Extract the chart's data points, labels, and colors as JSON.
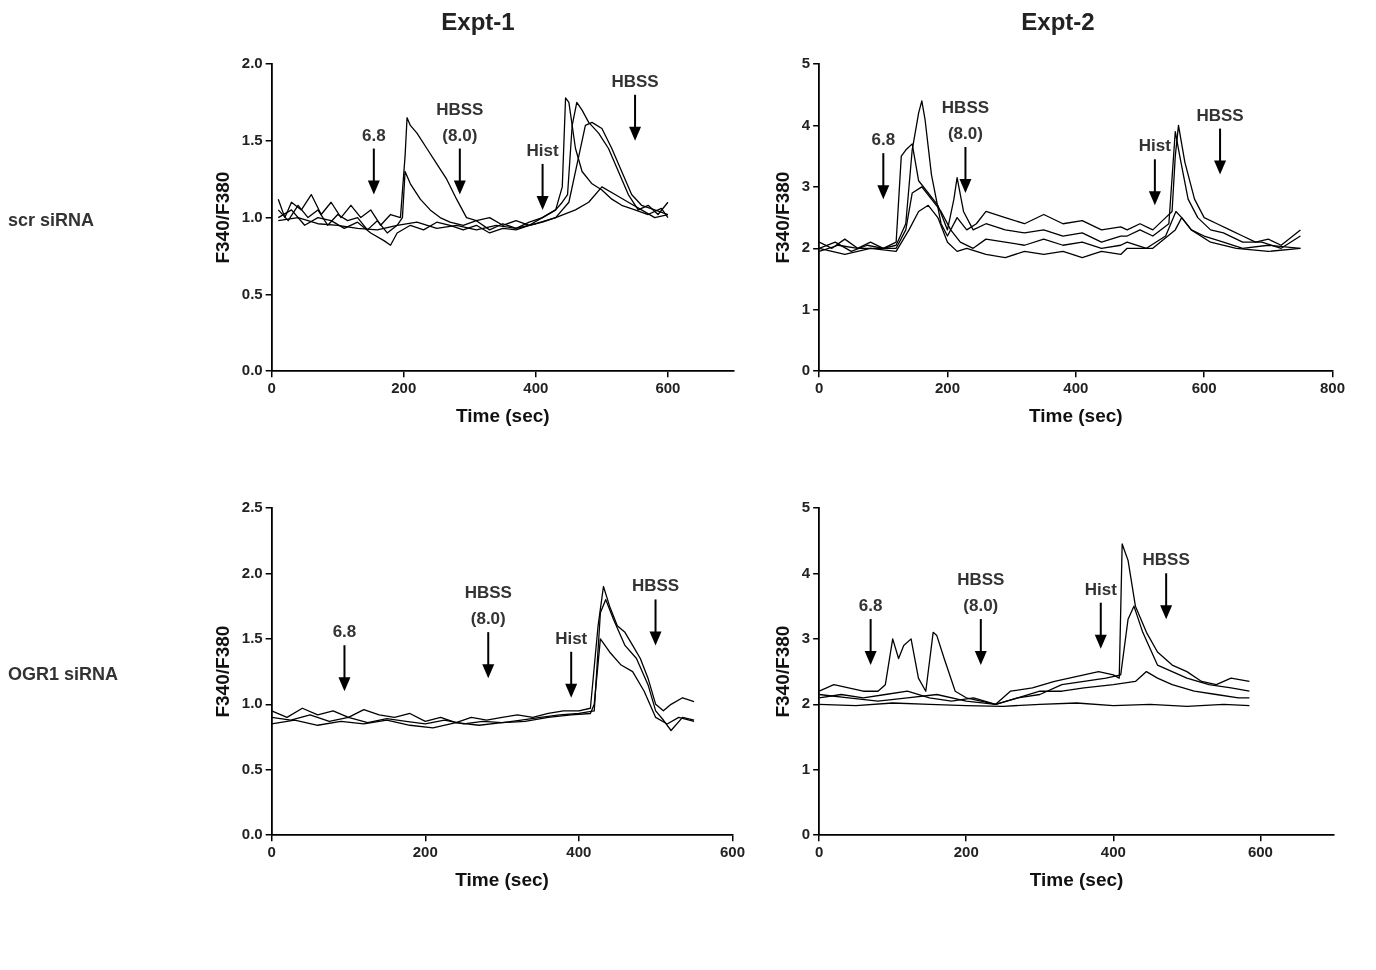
{
  "chart_data": [
    {
      "type": "line",
      "title": "Expt-1",
      "xlabel": "Time (sec)",
      "ylabel": "F340/F380",
      "xlim": [
        0,
        700
      ],
      "xticks": [
        0,
        200,
        400,
        600
      ],
      "ylim": [
        0,
        2
      ],
      "yticks": [
        {
          "value": 0,
          "label": "0.0"
        },
        {
          "value": 0.5,
          "label": "0.5"
        },
        {
          "value": 1,
          "label": "1.0"
        },
        {
          "value": 1.5,
          "label": "1.5"
        },
        {
          "value": 2,
          "label": "2.0"
        }
      ],
      "grid": false,
      "legend": false,
      "marker": "none",
      "line_style": "solid",
      "series": [
        {
          "color": "#000000",
          "x": [
            10,
            20,
            30,
            45,
            60,
            75,
            90,
            105,
            120,
            135,
            150,
            165,
            180,
            195,
            202,
            205,
            210,
            220,
            235,
            250,
            265,
            280,
            295,
            310,
            330,
            350,
            370,
            390,
            410,
            430,
            440,
            448,
            455,
            462,
            470,
            480,
            495,
            510,
            525,
            540,
            555,
            570,
            585,
            600
          ],
          "values": [
            1.12,
            1.0,
            1.1,
            1.05,
            1.15,
            1.02,
            1.1,
            1.0,
            1.08,
            1.0,
            1.05,
            0.95,
            1.02,
            1.0,
            1.4,
            1.65,
            1.6,
            1.55,
            1.45,
            1.35,
            1.25,
            1.12,
            1.0,
            0.98,
            1.0,
            0.95,
            0.98,
            0.95,
            1.0,
            1.05,
            1.1,
            1.15,
            1.6,
            1.75,
            1.7,
            1.62,
            1.55,
            1.45,
            1.3,
            1.15,
            1.05,
            1.08,
            1.02,
            1.1
          ]
        },
        {
          "color": "#000000",
          "x": [
            10,
            25,
            40,
            55,
            70,
            85,
            100,
            115,
            130,
            145,
            160,
            175,
            190,
            198,
            202,
            210,
            225,
            240,
            255,
            270,
            290,
            310,
            330,
            350,
            370,
            390,
            410,
            430,
            440,
            445,
            450,
            460,
            470,
            485,
            500,
            515,
            530,
            550,
            570,
            590,
            600
          ],
          "values": [
            1.05,
            0.98,
            1.08,
            1.0,
            1.05,
            0.95,
            1.02,
            0.98,
            1.0,
            0.92,
            0.98,
            0.9,
            0.95,
            1.0,
            1.3,
            1.22,
            1.12,
            1.05,
            1.0,
            0.97,
            0.95,
            0.98,
            0.92,
            0.96,
            0.93,
            0.97,
            1.0,
            1.05,
            1.2,
            1.78,
            1.75,
            1.45,
            1.3,
            1.22,
            1.18,
            1.12,
            1.08,
            1.05,
            1.02,
            1.06,
            1.0
          ]
        },
        {
          "color": "#000000",
          "x": [
            10,
            30,
            50,
            70,
            90,
            110,
            130,
            150,
            170,
            180,
            190,
            210,
            230,
            250,
            270,
            290,
            310,
            330,
            350,
            370,
            390,
            410,
            430,
            450,
            465,
            475,
            485,
            500,
            515,
            530,
            545,
            560,
            580,
            600
          ],
          "values": [
            1.0,
            1.05,
            0.95,
            1.0,
            0.98,
            0.93,
            0.97,
            0.9,
            0.85,
            0.82,
            0.9,
            0.95,
            0.92,
            0.97,
            0.95,
            0.92,
            0.95,
            0.9,
            0.93,
            0.92,
            0.95,
            0.97,
            1.0,
            1.1,
            1.4,
            1.6,
            1.62,
            1.58,
            1.45,
            1.3,
            1.15,
            1.08,
            1.05,
            1.02
          ]
        },
        {
          "color": "#000000",
          "x": [
            10,
            40,
            70,
            100,
            130,
            160,
            190,
            220,
            250,
            280,
            310,
            340,
            370,
            400,
            430,
            460,
            480,
            500,
            520,
            540,
            560,
            580,
            600
          ],
          "values": [
            0.98,
            1.0,
            0.96,
            0.95,
            0.93,
            0.92,
            0.95,
            0.97,
            0.93,
            0.95,
            0.92,
            0.95,
            0.93,
            0.96,
            1.0,
            1.05,
            1.1,
            1.2,
            1.15,
            1.1,
            1.05,
            1.0,
            1.02
          ]
        }
      ],
      "annotations": [
        "scr siRNA",
        "6.8",
        "HBSS\n(8.0)",
        "Hist",
        "HBSS"
      ]
    },
    {
      "type": "line",
      "title": "Expt-2",
      "xlabel": "Time (sec)",
      "ylabel": "F340/F380",
      "xlim": [
        0,
        800
      ],
      "xticks": [
        0,
        200,
        400,
        600,
        800
      ],
      "ylim": [
        0,
        5
      ],
      "yticks": [
        0,
        1,
        2,
        3,
        4,
        5
      ],
      "grid": false,
      "legend": false,
      "marker": "none",
      "line_style": "solid",
      "series": [
        {
          "color": "#000000",
          "x": [
            0,
            20,
            40,
            60,
            80,
            100,
            120,
            135,
            145,
            155,
            160,
            165,
            175,
            190,
            200,
            215,
            230,
            245,
            260,
            290,
            320,
            350,
            380,
            410,
            440,
            470,
            480,
            500,
            520,
            540,
            550,
            555,
            560,
            570,
            585,
            600,
            620,
            640,
            660,
            680,
            700,
            720,
            750
          ],
          "values": [
            2.1,
            2.0,
            2.15,
            2.0,
            2.1,
            2.0,
            2.05,
            2.4,
            3.6,
            4.2,
            4.4,
            4.1,
            3.2,
            2.4,
            2.2,
            2.5,
            2.3,
            2.4,
            2.6,
            2.5,
            2.4,
            2.55,
            2.4,
            2.45,
            2.3,
            2.35,
            2.3,
            2.4,
            2.3,
            2.5,
            2.6,
            3.5,
            4.0,
            3.4,
            2.8,
            2.5,
            2.4,
            2.3,
            2.2,
            2.1,
            2.15,
            2.05,
            2.3
          ]
        },
        {
          "color": "#000000",
          "x": [
            0,
            25,
            50,
            75,
            100,
            120,
            128,
            135,
            145,
            155,
            170,
            185,
            200,
            210,
            215,
            225,
            240,
            260,
            290,
            320,
            350,
            380,
            410,
            440,
            470,
            480,
            500,
            520,
            545,
            555,
            562,
            575,
            590,
            610,
            630,
            660,
            690,
            720,
            750
          ],
          "values": [
            2.0,
            2.1,
            1.95,
            2.05,
            2.0,
            2.1,
            3.5,
            3.6,
            3.7,
            3.1,
            2.9,
            2.7,
            2.3,
            2.8,
            3.15,
            2.6,
            2.3,
            2.4,
            2.3,
            2.25,
            2.3,
            2.2,
            2.25,
            2.1,
            2.2,
            2.2,
            2.3,
            2.2,
            2.4,
            3.9,
            3.5,
            2.8,
            2.5,
            2.3,
            2.25,
            2.1,
            2.1,
            2.0,
            2.2
          ]
        },
        {
          "color": "#000000",
          "x": [
            0,
            30,
            60,
            90,
            120,
            135,
            145,
            160,
            175,
            190,
            205,
            220,
            240,
            260,
            290,
            320,
            350,
            380,
            410,
            440,
            470,
            480,
            510,
            540,
            556,
            565,
            580,
            600,
            630,
            660,
            700,
            750
          ],
          "values": [
            1.95,
            2.05,
            2.0,
            2.0,
            2.0,
            2.3,
            2.9,
            3.0,
            2.8,
            2.6,
            2.3,
            2.1,
            2.0,
            2.15,
            2.1,
            2.05,
            2.15,
            2.05,
            2.1,
            2.0,
            2.05,
            2.1,
            2.0,
            2.2,
            2.6,
            2.5,
            2.3,
            2.2,
            2.1,
            2.0,
            2.05,
            2.0
          ]
        },
        {
          "color": "#000000",
          "x": [
            0,
            40,
            80,
            120,
            140,
            155,
            170,
            185,
            200,
            215,
            230,
            260,
            290,
            320,
            350,
            380,
            410,
            440,
            470,
            480,
            520,
            555,
            565,
            580,
            610,
            650,
            700,
            750
          ],
          "values": [
            2.0,
            1.9,
            2.0,
            1.95,
            2.3,
            2.6,
            2.7,
            2.5,
            2.1,
            1.95,
            2.0,
            1.9,
            1.85,
            1.95,
            1.9,
            1.95,
            1.85,
            1.95,
            1.9,
            2.0,
            2.0,
            2.3,
            2.5,
            2.3,
            2.1,
            2.0,
            1.95,
            2.0
          ]
        }
      ],
      "annotations": [
        "6.8",
        "HBSS\n(8.0)",
        "Hist",
        "HBSS"
      ]
    },
    {
      "type": "line",
      "xlabel": "Time (sec)",
      "ylabel": "F340/F380",
      "xlim": [
        0,
        600
      ],
      "xticks": [
        0,
        200,
        400,
        600
      ],
      "ylim": [
        0,
        2.5
      ],
      "yticks": [
        {
          "value": 0,
          "label": "0.0"
        },
        {
          "value": 0.5,
          "label": "0.5"
        },
        {
          "value": 1,
          "label": "1.0"
        },
        {
          "value": 1.5,
          "label": "1.5"
        },
        {
          "value": 2,
          "label": "2.0"
        },
        {
          "value": 2.5,
          "label": "2.5"
        }
      ],
      "grid": false,
      "legend": false,
      "marker": "none",
      "line_style": "solid",
      "series": [
        {
          "color": "#000000",
          "x": [
            0,
            20,
            40,
            60,
            80,
            100,
            120,
            140,
            160,
            180,
            200,
            220,
            240,
            260,
            280,
            300,
            320,
            340,
            360,
            380,
            400,
            415,
            425,
            432,
            440,
            450,
            460,
            470,
            480,
            490,
            500,
            510,
            520,
            535,
            550
          ],
          "values": [
            0.95,
            0.9,
            0.97,
            0.92,
            0.95,
            0.9,
            0.96,
            0.92,
            0.9,
            0.93,
            0.87,
            0.9,
            0.86,
            0.9,
            0.88,
            0.9,
            0.92,
            0.9,
            0.93,
            0.95,
            0.95,
            0.97,
            1.6,
            1.9,
            1.75,
            1.6,
            1.55,
            1.45,
            1.35,
            1.2,
            1.0,
            0.95,
            1.0,
            1.05,
            1.02
          ]
        },
        {
          "color": "#000000",
          "x": [
            0,
            25,
            50,
            75,
            100,
            125,
            150,
            175,
            200,
            225,
            250,
            275,
            300,
            325,
            350,
            375,
            400,
            420,
            428,
            435,
            445,
            460,
            475,
            490,
            500,
            510,
            520,
            535,
            550
          ],
          "values": [
            0.9,
            0.88,
            0.92,
            0.87,
            0.9,
            0.86,
            0.89,
            0.87,
            0.85,
            0.88,
            0.85,
            0.87,
            0.86,
            0.88,
            0.9,
            0.92,
            0.93,
            0.95,
            1.7,
            1.8,
            1.65,
            1.45,
            1.35,
            1.15,
            0.95,
            0.88,
            0.8,
            0.9,
            0.88
          ]
        },
        {
          "color": "#000000",
          "x": [
            0,
            30,
            60,
            90,
            120,
            150,
            180,
            210,
            240,
            270,
            300,
            330,
            360,
            390,
            415,
            420,
            428,
            440,
            455,
            470,
            485,
            500,
            515,
            530,
            550
          ],
          "values": [
            0.85,
            0.88,
            0.84,
            0.87,
            0.85,
            0.88,
            0.84,
            0.82,
            0.86,
            0.84,
            0.86,
            0.87,
            0.9,
            0.92,
            0.93,
            1.0,
            1.5,
            1.4,
            1.3,
            1.25,
            1.1,
            0.9,
            0.85,
            0.9,
            0.87
          ]
        }
      ],
      "annotations": [
        "OGR1 siRNA",
        "6.8",
        "HBSS\n(8.0)",
        "Hist",
        "HBSS"
      ]
    },
    {
      "type": "line",
      "xlabel": "Time (sec)",
      "ylabel": "F340/F380",
      "xlim": [
        0,
        700
      ],
      "xticks": [
        0,
        200,
        400,
        600
      ],
      "ylim": [
        0,
        5
      ],
      "yticks": [
        0,
        1,
        2,
        3,
        4,
        5
      ],
      "grid": false,
      "legend": false,
      "marker": "none",
      "line_style": "solid",
      "series": [
        {
          "color": "#000000",
          "x": [
            0,
            20,
            40,
            60,
            80,
            90,
            100,
            108,
            115,
            125,
            135,
            145,
            155,
            160,
            170,
            185,
            200,
            220,
            240,
            260,
            290,
            320,
            340,
            360,
            380,
            400,
            408,
            412,
            420,
            430,
            445,
            460,
            480,
            500,
            520,
            540,
            560,
            585
          ],
          "values": [
            2.2,
            2.3,
            2.25,
            2.2,
            2.2,
            2.3,
            3.0,
            2.7,
            2.9,
            3.0,
            2.4,
            2.2,
            3.1,
            3.05,
            2.7,
            2.2,
            2.1,
            2.05,
            2.0,
            2.2,
            2.25,
            2.35,
            2.4,
            2.45,
            2.5,
            2.45,
            2.4,
            4.45,
            4.2,
            3.5,
            3.1,
            2.8,
            2.6,
            2.5,
            2.35,
            2.3,
            2.4,
            2.35
          ]
        },
        {
          "color": "#000000",
          "x": [
            0,
            30,
            60,
            90,
            120,
            150,
            180,
            210,
            240,
            270,
            300,
            330,
            360,
            390,
            410,
            420,
            428,
            440,
            460,
            480,
            500,
            530,
            560,
            585
          ],
          "values": [
            2.1,
            2.15,
            2.1,
            2.15,
            2.2,
            2.1,
            2.05,
            2.1,
            2.0,
            2.1,
            2.15,
            2.3,
            2.35,
            2.4,
            2.45,
            3.3,
            3.5,
            3.1,
            2.6,
            2.5,
            2.4,
            2.3,
            2.25,
            2.2
          ]
        },
        {
          "color": "#000000",
          "x": [
            0,
            50,
            100,
            150,
            200,
            250,
            300,
            350,
            400,
            450,
            500,
            550,
            585
          ],
          "values": [
            2.0,
            1.98,
            2.02,
            2.0,
            1.98,
            1.97,
            2.0,
            2.02,
            1.98,
            2.0,
            1.97,
            2.0,
            1.98
          ]
        },
        {
          "color": "#000000",
          "x": [
            0,
            40,
            80,
            120,
            160,
            200,
            240,
            270,
            300,
            330,
            360,
            400,
            430,
            445,
            460,
            480,
            510,
            540,
            570,
            585
          ],
          "values": [
            2.15,
            2.1,
            2.05,
            2.1,
            2.15,
            2.05,
            2.0,
            2.1,
            2.2,
            2.2,
            2.25,
            2.3,
            2.35,
            2.5,
            2.4,
            2.3,
            2.2,
            2.15,
            2.1,
            2.1
          ]
        }
      ],
      "annotations": [
        "6.8",
        "HBSS\n(8.0)",
        "Hist",
        "HBSS"
      ]
    }
  ]
}
